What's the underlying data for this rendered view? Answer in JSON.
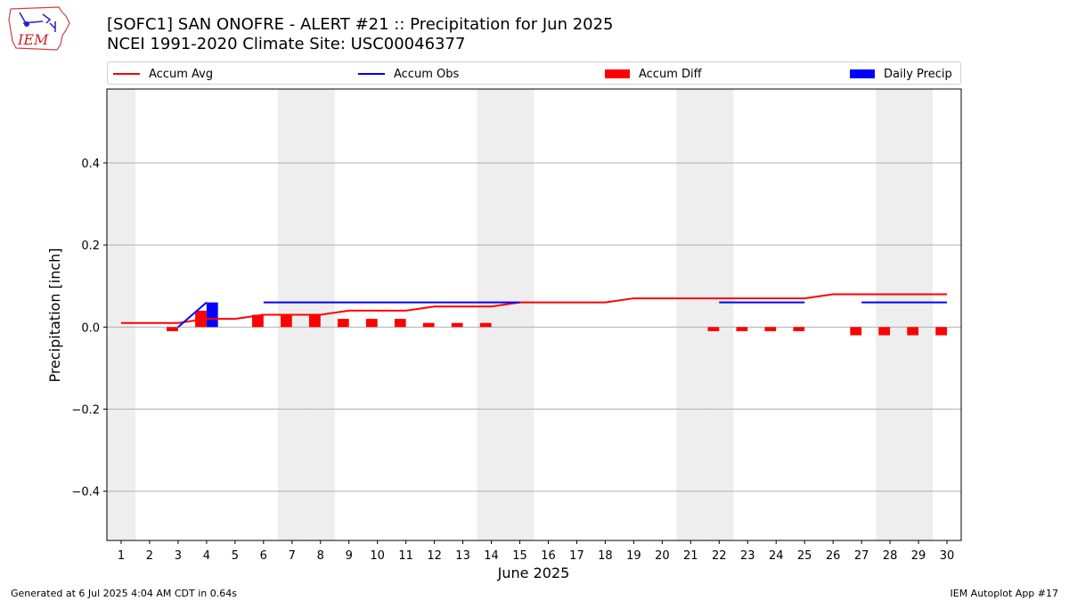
{
  "header": {
    "title_line1": "[SOFC1] SAN ONOFRE - ALERT #21 :: Precipitation for Jun 2025",
    "title_line2": "NCEI 1991-2020 Climate Site: USC00046377",
    "logo_text": "IEM"
  },
  "legend": {
    "items": [
      {
        "label": "Accum Avg",
        "color": "#ff0000",
        "kind": "line"
      },
      {
        "label": "Accum Obs",
        "color": "#0000ff",
        "kind": "line"
      },
      {
        "label": "Accum Diff",
        "color": "#ff0000",
        "kind": "patch"
      },
      {
        "label": "Daily Precip",
        "color": "#0000ff",
        "kind": "patch"
      }
    ]
  },
  "footer": {
    "left": "Generated at 6 Jul 2025 4:04 AM CDT in 0.64s",
    "right": "IEM Autoplot App #17"
  },
  "chart_data": {
    "type": "bar",
    "xlabel": "June 2025",
    "ylabel": "Precipitation [inch]",
    "ylim": [
      -0.52,
      0.58
    ],
    "yticks": [
      -0.4,
      -0.2,
      0.0,
      0.2,
      0.4
    ],
    "ytick_labels": [
      "−0.4",
      "−0.2",
      "0.0",
      "0.2",
      "0.4"
    ],
    "grid": true,
    "legend_position": "top",
    "days": [
      1,
      2,
      3,
      4,
      5,
      6,
      7,
      8,
      9,
      10,
      11,
      12,
      13,
      14,
      15,
      16,
      17,
      18,
      19,
      20,
      21,
      22,
      23,
      24,
      25,
      26,
      27,
      28,
      29,
      30
    ],
    "weekend_days": [
      1,
      7,
      8,
      14,
      15,
      21,
      22,
      28,
      29
    ],
    "series": [
      {
        "name": "Accum Avg",
        "color": "#ff0000",
        "values": [
          0.01,
          0.01,
          0.01,
          0.02,
          0.02,
          0.03,
          0.03,
          0.03,
          0.04,
          0.04,
          0.04,
          0.05,
          0.05,
          0.05,
          0.06,
          0.06,
          0.06,
          0.06,
          0.07,
          0.07,
          0.07,
          0.07,
          0.07,
          0.07,
          0.07,
          0.08,
          0.08,
          0.08,
          0.08,
          0.08
        ]
      },
      {
        "name": "Accum Obs",
        "color": "#0000ff",
        "values": [
          null,
          null,
          0.0,
          0.06,
          null,
          0.06,
          0.06,
          0.06,
          0.06,
          0.06,
          0.06,
          0.06,
          0.06,
          0.06,
          0.06,
          null,
          null,
          null,
          null,
          null,
          null,
          0.06,
          0.06,
          0.06,
          0.06,
          null,
          0.06,
          0.06,
          0.06,
          0.06
        ]
      },
      {
        "name": "Accum Diff",
        "color": "#ff0000",
        "values": [
          null,
          null,
          -0.01,
          0.04,
          null,
          0.03,
          0.03,
          0.03,
          0.02,
          0.02,
          0.02,
          0.01,
          0.01,
          0.01,
          null,
          null,
          null,
          null,
          null,
          null,
          null,
          -0.01,
          -0.01,
          -0.01,
          -0.01,
          null,
          -0.02,
          -0.02,
          -0.02,
          -0.02
        ]
      },
      {
        "name": "Daily Precip",
        "color": "#0000ff",
        "values": [
          null,
          null,
          null,
          0.06,
          null,
          null,
          null,
          null,
          null,
          null,
          null,
          null,
          null,
          null,
          null,
          null,
          null,
          null,
          null,
          null,
          null,
          null,
          null,
          null,
          null,
          null,
          null,
          null,
          null,
          null
        ]
      }
    ]
  }
}
